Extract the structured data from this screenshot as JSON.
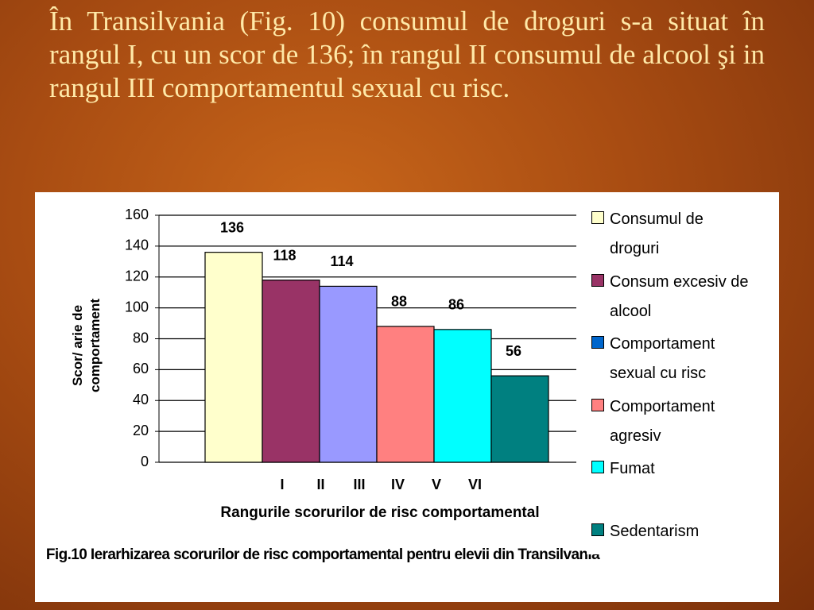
{
  "slide": {
    "text": "În Transilvania (Fig. 10) consumul de droguri s-a situat în rangul I, cu un scor de 136; în rangul II consumul de alcool şi in rangul III comportamentul sexual cu risc."
  },
  "chart_data": {
    "type": "bar",
    "y_label": "Scor/ arie de comportament",
    "x_label": "Rangurile scorurilor de risc comportamental",
    "caption": "Fig.10 Ierarhizarea scorurilor de risc comportamental pentru elevii din Transilvania",
    "categories": [
      "I",
      "II",
      "III",
      "IV",
      "V",
      "VI"
    ],
    "values": [
      136,
      118,
      114,
      88,
      86,
      56
    ],
    "colors": [
      "#ffffcc",
      "#993366",
      "#9999ff",
      "#ff8080",
      "#00ffff",
      "#008080"
    ],
    "legend": [
      {
        "name": "Consumul de droguri",
        "color": "#ffffcc"
      },
      {
        "name": "Consum excesiv de alcool",
        "color": "#993366"
      },
      {
        "name": "Comportament sexual cu risc",
        "color": "#0066cc"
      },
      {
        "name": "Comportament agresiv",
        "color": "#ff8080"
      },
      {
        "name": "Fumat",
        "color": "#00ffff"
      },
      {
        "name": "Sedentarism",
        "color": "#008080"
      }
    ],
    "ylim": [
      0,
      160
    ],
    "yticks": [
      0,
      20,
      40,
      60,
      80,
      100,
      120,
      140,
      160
    ],
    "grid": true
  }
}
